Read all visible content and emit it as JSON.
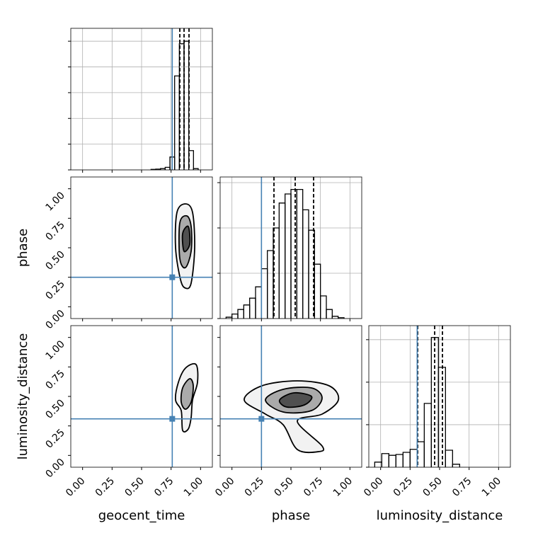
{
  "chart_data": {
    "type": "corner",
    "xlim": [
      -0.1,
      1.1
    ],
    "ticks": [
      {
        "value": 0,
        "label": "0.00"
      },
      {
        "value": 0.25,
        "label": "0.25"
      },
      {
        "value": 0.5,
        "label": "0.50"
      },
      {
        "value": 0.75,
        "label": "0.75"
      },
      {
        "value": 1,
        "label": "1.00"
      }
    ],
    "grid": true,
    "truth_color": "#4682b4",
    "hist_color": "#000000",
    "contour_fills": [
      "#f2f2f2",
      "#aaaaaa",
      "#505050"
    ],
    "parameters": [
      {
        "name": "geocent_time",
        "truth": 0.76,
        "quantiles": [
          0.824,
          0.86,
          0.902
        ],
        "bins": [
          0.58,
          0.62,
          0.66,
          0.7,
          0.74,
          0.78,
          0.82,
          0.86,
          0.9,
          0.94,
          0.98
        ],
        "counts": [
          0.02,
          0.03,
          0.05,
          0.1,
          0.5,
          3.65,
          4.9,
          5.0,
          0.75,
          0.05
        ],
        "ylim": [
          0,
          5.5
        ],
        "yticks": [
          0,
          1,
          2,
          3,
          4,
          5
        ]
      },
      {
        "name": "phase",
        "truth": 0.25,
        "quantiles": [
          0.356,
          0.536,
          0.692
        ],
        "bins": [
          -0.05,
          0,
          0.05,
          0.1,
          0.15,
          0.2,
          0.25,
          0.3,
          0.35,
          0.4,
          0.45,
          0.5,
          0.55,
          0.6,
          0.65,
          0.7,
          0.75,
          0.8,
          0.85,
          0.9,
          0.95
        ],
        "counts": [
          0.03,
          0.1,
          0.2,
          0.3,
          0.45,
          0.7,
          1.1,
          1.5,
          2.0,
          2.55,
          2.75,
          2.85,
          2.85,
          2.4,
          1.95,
          1.2,
          0.5,
          0.2,
          0.05,
          0.02
        ],
        "ylim": [
          0,
          3.125
        ],
        "yticks": [
          0,
          1,
          2,
          3
        ]
      },
      {
        "name": "luminosity_distance",
        "truth": 0.31,
        "quantiles": [
          0.314,
          0.458,
          0.524
        ],
        "bins": [
          -0.05,
          0.01,
          0.07,
          0.13,
          0.19,
          0.25,
          0.31,
          0.37,
          0.43,
          0.49,
          0.55,
          0.61,
          0.67
        ],
        "counts": [
          0.12,
          0.32,
          0.28,
          0.3,
          0.35,
          0.42,
          0.6,
          1.5,
          3.05,
          2.35,
          0.4,
          0.07
        ],
        "ylim": [
          0,
          3.33
        ],
        "yticks": [
          0,
          1,
          2,
          3
        ]
      }
    ],
    "panels": [
      {
        "x": 0,
        "y": 1,
        "contours": [
          [
            [
              0.8,
              0.8
            ],
            [
              0.872,
              0.872
            ],
            [
              0.932,
              0.8
            ],
            [
              0.95,
              0.5
            ],
            [
              0.92,
              0.2
            ],
            [
              0.872,
              0.158
            ],
            [
              0.83,
              0.23
            ],
            [
              0.788,
              0.5
            ]
          ],
          [
            [
              0.824,
              0.71
            ],
            [
              0.884,
              0.77
            ],
            [
              0.92,
              0.68
            ],
            [
              0.92,
              0.47
            ],
            [
              0.872,
              0.332
            ],
            [
              0.824,
              0.41
            ]
          ],
          [
            [
              0.848,
              0.62
            ],
            [
              0.896,
              0.68
            ],
            [
              0.908,
              0.53
            ],
            [
              0.86,
              0.47
            ]
          ]
        ]
      },
      {
        "x": 0,
        "y": 2,
        "contours": [
          [
            [
              0.848,
              0.212
            ],
            [
              0.836,
              0.38
            ],
            [
              0.788,
              0.47
            ],
            [
              0.812,
              0.62
            ],
            [
              0.872,
              0.74
            ],
            [
              0.962,
              0.77
            ],
            [
              0.974,
              0.62
            ],
            [
              0.932,
              0.47
            ],
            [
              0.92,
              0.32
            ],
            [
              0.896,
              0.224
            ]
          ],
          [
            [
              0.836,
              0.452
            ],
            [
              0.848,
              0.572
            ],
            [
              0.908,
              0.65
            ],
            [
              0.938,
              0.59
            ],
            [
              0.92,
              0.452
            ],
            [
              0.872,
              0.392
            ]
          ]
        ]
      },
      {
        "x": 1,
        "y": 2,
        "contours": [
          [
            [
              0.104,
              0.47
            ],
            [
              0.254,
              0.59
            ],
            [
              0.554,
              0.632
            ],
            [
              0.824,
              0.59
            ],
            [
              0.902,
              0.47
            ],
            [
              0.764,
              0.35
            ],
            [
              0.554,
              0.29
            ],
            [
              0.764,
              0.08
            ],
            [
              0.734,
              0.032
            ],
            [
              0.554,
              0.05
            ],
            [
              0.434,
              0.26
            ],
            [
              0.284,
              0.35
            ]
          ],
          [
            [
              0.284,
              0.47
            ],
            [
              0.434,
              0.56
            ],
            [
              0.674,
              0.572
            ],
            [
              0.764,
              0.488
            ],
            [
              0.674,
              0.38
            ],
            [
              0.434,
              0.368
            ]
          ],
          [
            [
              0.404,
              0.47
            ],
            [
              0.524,
              0.53
            ],
            [
              0.674,
              0.5
            ],
            [
              0.614,
              0.428
            ],
            [
              0.464,
              0.41
            ]
          ]
        ]
      }
    ]
  }
}
